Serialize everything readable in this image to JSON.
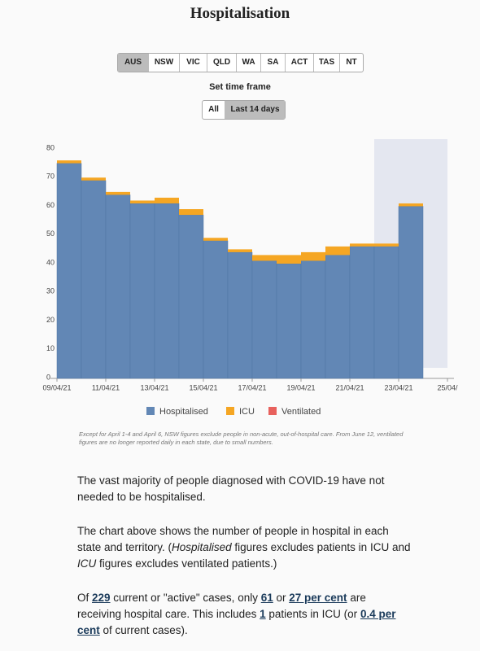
{
  "header": {
    "title": "Hospitalisation"
  },
  "regions": [
    "AUS",
    "NSW",
    "VIC",
    "QLD",
    "WA",
    "SA",
    "ACT",
    "TAS",
    "NT"
  ],
  "time_frame": {
    "label": "Set time frame",
    "options": [
      "All",
      "Last 14 days"
    ]
  },
  "chart_data": {
    "type": "bar",
    "stacked": true,
    "categories": [
      "09/04/21",
      null,
      "11/04/21",
      null,
      "13/04/21",
      null,
      "15/04/21",
      null,
      "17/04/21",
      null,
      "19/04/21",
      null,
      "21/04/21",
      null,
      "23/04/21",
      null,
      "25/04/"
    ],
    "series": [
      {
        "name": "Hospitalised",
        "color": "#6287b5",
        "values": [
          75,
          69,
          64,
          61,
          61,
          57,
          48,
          44,
          41,
          40,
          41,
          43,
          46,
          46,
          60,
          null,
          null
        ]
      },
      {
        "name": "ICU",
        "color": "#f5a623",
        "values": [
          1,
          1,
          1,
          1,
          2,
          2,
          1,
          1,
          2,
          3,
          3,
          3,
          1,
          1,
          1,
          null,
          null
        ]
      },
      {
        "name": "Ventilated",
        "color": "#e8615d",
        "values": [
          0,
          0,
          0,
          0,
          0,
          0,
          0,
          0,
          0,
          0,
          0,
          0,
          0,
          0,
          0,
          null,
          null
        ]
      }
    ],
    "ylim": [
      0,
      80
    ],
    "yticks": [
      0,
      10,
      20,
      30,
      40,
      50,
      60,
      70,
      80
    ],
    "legend": "bottom"
  },
  "footnote": "Except for April 1-4 and April 6, NSW figures exclude people in non-acute, out-of-hospital care. From June 12, ventilated figures are no longer reported daily in each state, due to small numbers.",
  "paragraphs": {
    "p1": "The vast majority of people diagnosed with COVID-19 have not needed to be hospitalised.",
    "p2": [
      "The chart above shows the number of people in hospital in each state and territory. (",
      "Hospitalised",
      " figures excludes patients in ICU and ",
      "ICU",
      " figures excludes ventilated patients.)"
    ],
    "p3": [
      "Of ",
      "229",
      " current or \"active\" cases, only ",
      "61",
      " or ",
      "27 per cent",
      " are receiving hospital care. This includes ",
      "1",
      " patients in ICU (or ",
      "0.4 per cent",
      " of current cases)."
    ]
  }
}
